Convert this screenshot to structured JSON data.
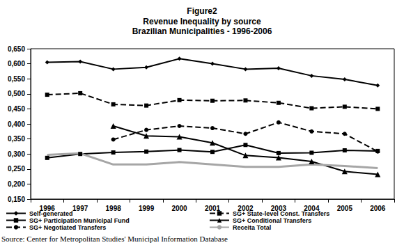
{
  "chart_data": {
    "type": "line",
    "title": "Figure2",
    "subtitle": "Revenue Inequality by source\nBrazilian Municipalities - 1996-2006",
    "source": "Source: Center for Metropolitan Studies' Municipal Information Database",
    "categories": [
      "1996",
      "1997",
      "1998",
      "1999",
      "2000",
      "2001",
      "2002",
      "2003",
      "2004",
      "2005",
      "2006"
    ],
    "series": [
      {
        "name": "Self-generated",
        "color": "#000000",
        "marker": "diamond",
        "line_style": "solid",
        "values": [
          0.605,
          0.607,
          0.582,
          0.588,
          0.617,
          0.6,
          0.582,
          0.585,
          0.56,
          0.548,
          0.528
        ]
      },
      {
        "name": "SG+ State-level Const. Transfers",
        "color": "#000000",
        "marker": "square",
        "line_style": "dashed",
        "values": [
          0.497,
          0.502,
          0.465,
          0.461,
          0.479,
          0.477,
          0.478,
          0.47,
          0.452,
          0.457,
          0.45
        ]
      },
      {
        "name": "SG+ Participation Municipal Fund",
        "color": "#000000",
        "marker": "square",
        "line_style": "solid",
        "values": [
          0.287,
          0.3,
          0.305,
          0.308,
          0.313,
          0.307,
          0.33,
          0.303,
          0.304,
          0.312,
          0.31
        ]
      },
      {
        "name": "SG+ Conditional Transfers",
        "color": "#000000",
        "marker": "triangle",
        "line_style": "solid",
        "values": [
          null,
          null,
          0.393,
          0.36,
          0.357,
          0.337,
          0.295,
          0.288,
          0.275,
          0.242,
          0.232
        ]
      },
      {
        "name": "SG+ Negotiated Transfers",
        "color": "#000000",
        "marker": "circle",
        "line_style": "dashed",
        "values": [
          null,
          null,
          0.348,
          0.38,
          0.393,
          0.386,
          0.367,
          0.405,
          0.375,
          0.367,
          0.308
        ]
      },
      {
        "name": "Receita Total",
        "color": "#a6a6a6",
        "marker": "none",
        "line_style": "solid",
        "values": [
          0.297,
          0.302,
          0.265,
          0.265,
          0.273,
          0.265,
          0.257,
          0.257,
          0.265,
          0.26,
          0.253
        ]
      }
    ],
    "ylim": [
      0.15,
      0.65
    ],
    "yticks": [
      {
        "value": 0.15,
        "label": "0,150"
      },
      {
        "value": 0.2,
        "label": "0,200"
      },
      {
        "value": 0.25,
        "label": "0,250"
      },
      {
        "value": 0.3,
        "label": "0,300"
      },
      {
        "value": 0.35,
        "label": "0,350"
      },
      {
        "value": 0.4,
        "label": "0,400"
      },
      {
        "value": 0.45,
        "label": "0,450"
      },
      {
        "value": 0.5,
        "label": "0,500"
      },
      {
        "value": 0.55,
        "label": "0,550"
      },
      {
        "value": 0.6,
        "label": "0,600"
      },
      {
        "value": 0.65,
        "label": "0,650"
      }
    ],
    "grid": false,
    "legend": "bottom"
  }
}
